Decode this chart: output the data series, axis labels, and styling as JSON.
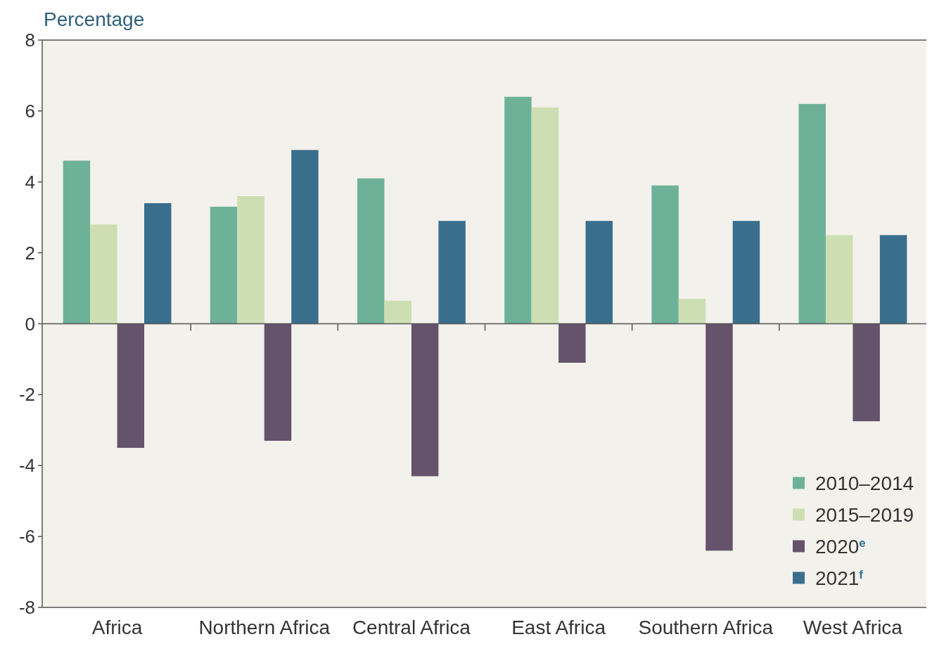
{
  "chart_data": {
    "type": "bar",
    "ylabel": "Percentage",
    "categories": [
      "Africa",
      "Northern Africa",
      "Central Africa",
      "East Africa",
      "Southern Africa",
      "West Africa"
    ],
    "series": [
      {
        "name": "2010–2014",
        "color": "#6db298",
        "values": [
          4.6,
          3.3,
          4.1,
          6.4,
          3.9,
          6.2
        ]
      },
      {
        "name": "2015–2019",
        "color": "#cddfb2",
        "values": [
          2.8,
          3.6,
          0.65,
          6.1,
          0.7,
          2.5
        ]
      },
      {
        "name": "2020$^{e}$",
        "color": "#65526b",
        "values": [
          -3.5,
          -3.3,
          -4.3,
          -1.1,
          -6.4,
          -2.75
        ]
      },
      {
        "name": "2021$^{f}$",
        "color": "#3a6e8d",
        "values": [
          3.4,
          4.9,
          2.9,
          2.9,
          2.9,
          2.5
        ]
      }
    ],
    "ylim": [
      -8,
      8
    ],
    "yticks": [
      -8,
      -6,
      -4,
      -2,
      0,
      2,
      4,
      6,
      8
    ],
    "legend": "bottom right"
  }
}
